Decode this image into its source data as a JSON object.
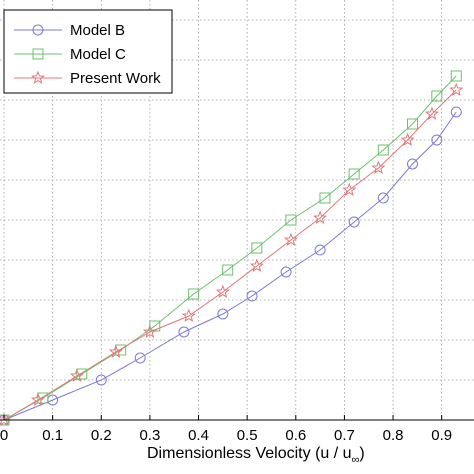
{
  "chart_data": {
    "type": "line",
    "xlabel": "Dimensionless Velocity (u / u",
    "xlabel_subscript": "∞",
    "xlabel_close": ")",
    "xlim": [
      0,
      0.95
    ],
    "ylim": [
      0,
      10.5
    ],
    "x_ticks": [
      "0",
      "0.1",
      "0.2",
      "0.3",
      "0.4",
      "0.5",
      "0.6",
      "0.7",
      "0.8",
      "0.9"
    ],
    "grid": true,
    "legend": {
      "position": "top-left"
    },
    "series": [
      {
        "name": "Model B",
        "color": "#7b7bd6",
        "marker": "circle",
        "x": [
          0,
          0.1,
          0.2,
          0.28,
          0.37,
          0.45,
          0.51,
          0.58,
          0.65,
          0.72,
          0.78,
          0.84,
          0.89,
          0.93
        ],
        "y": [
          0,
          0.5,
          1.0,
          1.55,
          2.2,
          2.65,
          3.1,
          3.7,
          4.25,
          4.95,
          5.55,
          6.4,
          7.0,
          7.7
        ]
      },
      {
        "name": "Model C",
        "color": "#6dc06d",
        "marker": "square",
        "x": [
          0,
          0.08,
          0.16,
          0.24,
          0.31,
          0.39,
          0.46,
          0.52,
          0.59,
          0.66,
          0.72,
          0.78,
          0.84,
          0.89,
          0.93
        ],
        "y": [
          0,
          0.55,
          1.15,
          1.75,
          2.35,
          3.15,
          3.75,
          4.3,
          5.0,
          5.55,
          6.15,
          6.75,
          7.4,
          8.1,
          8.6
        ]
      },
      {
        "name": "Present Work",
        "color": "#e07878",
        "marker": "star",
        "x": [
          0,
          0.07,
          0.15,
          0.23,
          0.3,
          0.38,
          0.45,
          0.52,
          0.59,
          0.65,
          0.71,
          0.77,
          0.83,
          0.88,
          0.93
        ],
        "y": [
          0,
          0.5,
          1.1,
          1.7,
          2.2,
          2.6,
          3.2,
          3.85,
          4.5,
          5.05,
          5.75,
          6.3,
          7.0,
          7.65,
          8.25
        ]
      }
    ]
  }
}
